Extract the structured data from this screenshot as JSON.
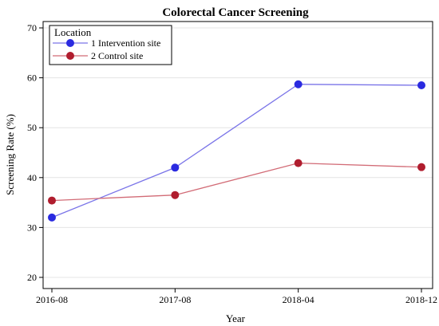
{
  "chart_data": {
    "type": "line",
    "title": "Colorectal Cancer Screening",
    "xlabel": "Year",
    "ylabel": "Screening Rate (%)",
    "categories": [
      "2016-08",
      "2017-08",
      "2018-04",
      "2018-12"
    ],
    "ylim": [
      20,
      70
    ],
    "yticks": [
      20,
      30,
      40,
      50,
      60,
      70
    ],
    "grid": "horizontal",
    "legend": {
      "title": "Location",
      "placement": "top-left"
    },
    "series": [
      {
        "name": "1 Intervention site",
        "values": [
          32,
          42,
          58.7,
          58.5
        ],
        "color": "#2a2ae0",
        "line_color": "#7a74e8"
      },
      {
        "name": "2 Control site",
        "values": [
          35.4,
          36.5,
          42.9,
          42.1
        ],
        "color": "#b01d2e",
        "line_color": "#d26b76"
      }
    ]
  }
}
